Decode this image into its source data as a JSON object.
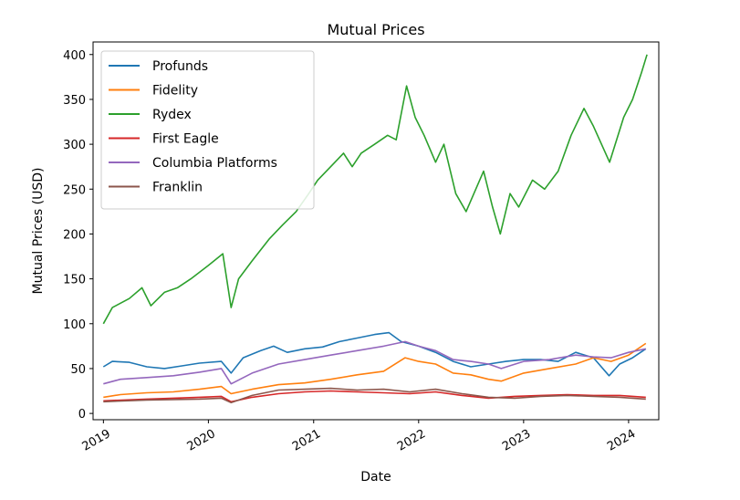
{
  "chart_data": {
    "type": "line",
    "title": "Mutual Prices",
    "xlabel": "Date",
    "ylabel": "Mutual Prices (USD)",
    "xlim": [
      "2018-11-26",
      "2024-04-15"
    ],
    "ylim": [
      -7,
      414
    ],
    "x_ticks": [
      "2019",
      "2020",
      "2021",
      "2022",
      "2023",
      "2024"
    ],
    "y_ticks": [
      0,
      50,
      100,
      150,
      200,
      250,
      300,
      350,
      400
    ],
    "grid": false,
    "legend_position": "top-left",
    "series": [
      {
        "name": "Profunds",
        "color": "#1f77b4",
        "points": [
          [
            "2019-01-01",
            52
          ],
          [
            "2019-02-01",
            58
          ],
          [
            "2019-04-01",
            57
          ],
          [
            "2019-06-01",
            52
          ],
          [
            "2019-08-01",
            50
          ],
          [
            "2019-10-01",
            53
          ],
          [
            "2019-12-01",
            56
          ],
          [
            "2020-02-15",
            58
          ],
          [
            "2020-03-20",
            45
          ],
          [
            "2020-05-01",
            62
          ],
          [
            "2020-07-01",
            70
          ],
          [
            "2020-08-15",
            75
          ],
          [
            "2020-10-01",
            68
          ],
          [
            "2020-12-01",
            72
          ],
          [
            "2021-02-01",
            74
          ],
          [
            "2021-04-01",
            80
          ],
          [
            "2021-06-01",
            84
          ],
          [
            "2021-08-01",
            88
          ],
          [
            "2021-09-20",
            90
          ],
          [
            "2021-11-01",
            80
          ],
          [
            "2022-01-01",
            75
          ],
          [
            "2022-03-01",
            68
          ],
          [
            "2022-05-01",
            58
          ],
          [
            "2022-07-01",
            52
          ],
          [
            "2022-09-01",
            55
          ],
          [
            "2022-11-01",
            58
          ],
          [
            "2023-01-01",
            60
          ],
          [
            "2023-03-01",
            60
          ],
          [
            "2023-05-01",
            58
          ],
          [
            "2023-07-01",
            68
          ],
          [
            "2023-09-01",
            62
          ],
          [
            "2023-10-25",
            42
          ],
          [
            "2023-12-01",
            55
          ],
          [
            "2024-01-15",
            62
          ],
          [
            "2024-03-01",
            72
          ]
        ]
      },
      {
        "name": "Fidelity",
        "color": "#ff7f0e",
        "points": [
          [
            "2019-01-01",
            18
          ],
          [
            "2019-03-01",
            21
          ],
          [
            "2019-06-01",
            23
          ],
          [
            "2019-09-01",
            24
          ],
          [
            "2019-12-01",
            27
          ],
          [
            "2020-02-15",
            30
          ],
          [
            "2020-03-20",
            22
          ],
          [
            "2020-06-01",
            27
          ],
          [
            "2020-09-01",
            32
          ],
          [
            "2020-12-01",
            34
          ],
          [
            "2021-03-01",
            38
          ],
          [
            "2021-06-01",
            43
          ],
          [
            "2021-09-01",
            47
          ],
          [
            "2021-11-15",
            62
          ],
          [
            "2022-01-01",
            58
          ],
          [
            "2022-03-01",
            55
          ],
          [
            "2022-05-01",
            45
          ],
          [
            "2022-07-01",
            43
          ],
          [
            "2022-09-01",
            38
          ],
          [
            "2022-10-15",
            36
          ],
          [
            "2023-01-01",
            45
          ],
          [
            "2023-04-01",
            50
          ],
          [
            "2023-07-01",
            55
          ],
          [
            "2023-09-01",
            62
          ],
          [
            "2023-11-01",
            58
          ],
          [
            "2024-01-01",
            65
          ],
          [
            "2024-03-01",
            78
          ]
        ]
      },
      {
        "name": "Rydex",
        "color": "#2ca02c",
        "points": [
          [
            "2019-01-01",
            100
          ],
          [
            "2019-02-01",
            118
          ],
          [
            "2019-04-01",
            128
          ],
          [
            "2019-05-15",
            140
          ],
          [
            "2019-06-15",
            120
          ],
          [
            "2019-08-01",
            135
          ],
          [
            "2019-09-15",
            140
          ],
          [
            "2019-11-01",
            150
          ],
          [
            "2020-01-01",
            165
          ],
          [
            "2020-02-20",
            178
          ],
          [
            "2020-03-20",
            118
          ],
          [
            "2020-04-15",
            150
          ],
          [
            "2020-06-01",
            170
          ],
          [
            "2020-08-01",
            195
          ],
          [
            "2020-09-15",
            210
          ],
          [
            "2020-11-01",
            225
          ],
          [
            "2020-12-15",
            245
          ],
          [
            "2021-01-15",
            260
          ],
          [
            "2021-03-01",
            275
          ],
          [
            "2021-04-15",
            290
          ],
          [
            "2021-05-15",
            275
          ],
          [
            "2021-06-15",
            290
          ],
          [
            "2021-08-01",
            300
          ],
          [
            "2021-09-15",
            310
          ],
          [
            "2021-10-15",
            305
          ],
          [
            "2021-11-20",
            365
          ],
          [
            "2021-12-20",
            330
          ],
          [
            "2022-01-20",
            310
          ],
          [
            "2022-03-01",
            280
          ],
          [
            "2022-03-30",
            300
          ],
          [
            "2022-05-10",
            245
          ],
          [
            "2022-06-15",
            225
          ],
          [
            "2022-08-15",
            270
          ],
          [
            "2022-09-15",
            230
          ],
          [
            "2022-10-12",
            200
          ],
          [
            "2022-11-15",
            245
          ],
          [
            "2022-12-15",
            230
          ],
          [
            "2023-02-01",
            260
          ],
          [
            "2023-03-15",
            250
          ],
          [
            "2023-05-01",
            270
          ],
          [
            "2023-06-15",
            310
          ],
          [
            "2023-07-30",
            340
          ],
          [
            "2023-09-01",
            320
          ],
          [
            "2023-10-27",
            280
          ],
          [
            "2023-12-15",
            330
          ],
          [
            "2024-01-15",
            350
          ],
          [
            "2024-02-15",
            380
          ],
          [
            "2024-03-05",
            400
          ]
        ]
      },
      {
        "name": "First Eagle",
        "color": "#d62728",
        "points": [
          [
            "2019-01-01",
            14
          ],
          [
            "2019-06-01",
            16
          ],
          [
            "2019-12-01",
            18
          ],
          [
            "2020-02-15",
            19
          ],
          [
            "2020-03-20",
            13
          ],
          [
            "2020-06-01",
            18
          ],
          [
            "2020-09-01",
            22
          ],
          [
            "2020-12-01",
            24
          ],
          [
            "2021-03-01",
            25
          ],
          [
            "2021-06-01",
            24
          ],
          [
            "2021-09-01",
            23
          ],
          [
            "2021-12-01",
            22
          ],
          [
            "2022-03-01",
            24
          ],
          [
            "2022-06-01",
            20
          ],
          [
            "2022-09-01",
            17
          ],
          [
            "2022-12-01",
            19
          ],
          [
            "2023-03-01",
            20
          ],
          [
            "2023-06-01",
            21
          ],
          [
            "2023-09-01",
            20
          ],
          [
            "2023-12-01",
            20
          ],
          [
            "2024-03-01",
            18
          ]
        ]
      },
      {
        "name": "Columbia Platforms",
        "color": "#9467bd",
        "points": [
          [
            "2019-01-01",
            33
          ],
          [
            "2019-03-01",
            38
          ],
          [
            "2019-06-01",
            40
          ],
          [
            "2019-09-01",
            42
          ],
          [
            "2019-12-01",
            46
          ],
          [
            "2020-02-15",
            50
          ],
          [
            "2020-03-20",
            33
          ],
          [
            "2020-06-01",
            45
          ],
          [
            "2020-09-01",
            55
          ],
          [
            "2020-12-01",
            60
          ],
          [
            "2021-03-01",
            65
          ],
          [
            "2021-06-01",
            70
          ],
          [
            "2021-09-01",
            75
          ],
          [
            "2021-11-15",
            80
          ],
          [
            "2022-01-01",
            75
          ],
          [
            "2022-03-01",
            70
          ],
          [
            "2022-05-01",
            60
          ],
          [
            "2022-07-01",
            58
          ],
          [
            "2022-09-01",
            55
          ],
          [
            "2022-10-15",
            50
          ],
          [
            "2023-01-01",
            58
          ],
          [
            "2023-04-01",
            60
          ],
          [
            "2023-07-01",
            65
          ],
          [
            "2023-09-01",
            63
          ],
          [
            "2023-11-01",
            62
          ],
          [
            "2024-01-01",
            68
          ],
          [
            "2024-03-01",
            72
          ]
        ]
      },
      {
        "name": "Franklin",
        "color": "#8c564b",
        "points": [
          [
            "2019-01-01",
            13
          ],
          [
            "2019-06-01",
            15
          ],
          [
            "2019-12-01",
            16
          ],
          [
            "2020-02-15",
            17
          ],
          [
            "2020-03-20",
            12
          ],
          [
            "2020-06-01",
            20
          ],
          [
            "2020-09-01",
            26
          ],
          [
            "2020-12-01",
            27
          ],
          [
            "2021-03-01",
            28
          ],
          [
            "2021-06-01",
            26
          ],
          [
            "2021-09-01",
            27
          ],
          [
            "2021-12-01",
            24
          ],
          [
            "2022-03-01",
            27
          ],
          [
            "2022-06-01",
            22
          ],
          [
            "2022-09-01",
            18
          ],
          [
            "2022-12-01",
            17
          ],
          [
            "2023-03-01",
            19
          ],
          [
            "2023-06-01",
            20
          ],
          [
            "2023-09-01",
            19
          ],
          [
            "2023-12-01",
            18
          ],
          [
            "2024-03-01",
            16
          ]
        ]
      }
    ]
  }
}
